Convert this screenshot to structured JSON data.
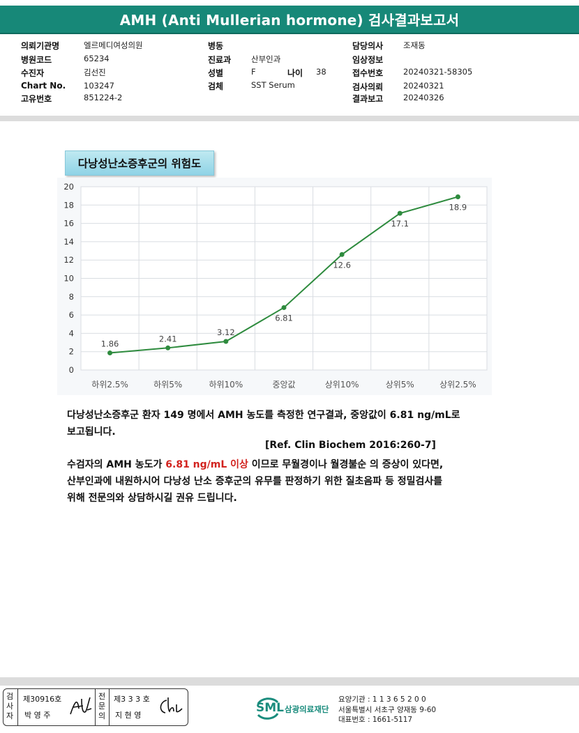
{
  "header": {
    "title": "AMH (Anti Mullerian hormone) 검사결과보고서"
  },
  "info": {
    "institution_label": "의뢰기관명",
    "institution_value": "엘르메디여성의원",
    "hospital_code_label": "병원코드",
    "hospital_code_value": "65234",
    "patient_label": "수진자",
    "patient_value": "김선진",
    "chart_no_label": "Chart No.",
    "chart_no_value": "103247",
    "unique_no_label": "고유번호",
    "unique_no_value": "851224-2",
    "ward_label": "병동",
    "ward_value": "",
    "department_label": "진료과",
    "department_value": "산부인과",
    "sex_label": "성별",
    "sex_value": "F",
    "age_label": "나이",
    "age_value": "38",
    "specimen_label": "검체",
    "specimen_value": "SST Serum",
    "doctor_label": "담당의사",
    "doctor_value": "조재동",
    "clinical_label": "임상정보",
    "clinical_value": "",
    "receipt_label": "접수번호",
    "receipt_value": "20240321-58305",
    "request_label": "검사의뢰",
    "request_value": "20240321",
    "report_label": "결과보고",
    "report_value": "20240326"
  },
  "section_title": "다낭성난소증후군의 위험도",
  "chart_data": {
    "type": "line",
    "categories": [
      "하위2.5%",
      "하위5%",
      "하위10%",
      "중앙값",
      "상위10%",
      "상위5%",
      "상위2.5%"
    ],
    "values": [
      1.86,
      2.41,
      3.12,
      6.81,
      12.6,
      17.1,
      18.9
    ],
    "value_labels": [
      "1.86",
      "2.41",
      "3.12",
      "6.81",
      "12.6",
      "17.1",
      "18.9"
    ],
    "y_ticks": [
      "0",
      "2",
      "4",
      "6",
      "8",
      "10",
      "12",
      "14",
      "16",
      "18",
      "20"
    ],
    "ylim": [
      0,
      20
    ],
    "grid": true,
    "line_color": "#2e8b3e",
    "title": "",
    "xlabel": "",
    "ylabel": ""
  },
  "paragraph": {
    "line1": "다낭성난소증후군 환자 149 명에서 AMH 농도를 측정한 연구결과, 중앙값이 6.81 ng/mL로",
    "line2": "보고됩니다.",
    "ref": "[Ref. Clin Biochem 2016:260-7]",
    "line3_pre": "수검자의 AMH 농도가 ",
    "line3_red": "6.81 ng/mL 이상",
    "line3_post": " 이므로 무월경이나 월경불순 의 증상이 있다면,",
    "line4": "산부인과에 내원하시어 다낭성 난소 증후군의 유무를 판정하기 위한 질초음파 등 정밀검사를",
    "line5": "위해 전문의와 상담하시길 권유 드립니다."
  },
  "signature": {
    "examiner_label": "검사자",
    "examiner_license": "제30916호",
    "examiner_name": "박 영 주",
    "specialist_label": "전문의",
    "specialist_license": "제3 3 3 호",
    "specialist_name": "지 현 영"
  },
  "footer": {
    "logo_text": "SML",
    "org_name": "삼광의료재단",
    "care_code": "요양기관 : 1 1 3 6 5 2 0 0",
    "address": "서울특별시 서초구 양재동 9-60",
    "phone": "대표번호 : 1661-5117"
  },
  "colors": {
    "header": "#178878",
    "accent_red": "#d2231f",
    "brand": "#1a8c7d"
  }
}
